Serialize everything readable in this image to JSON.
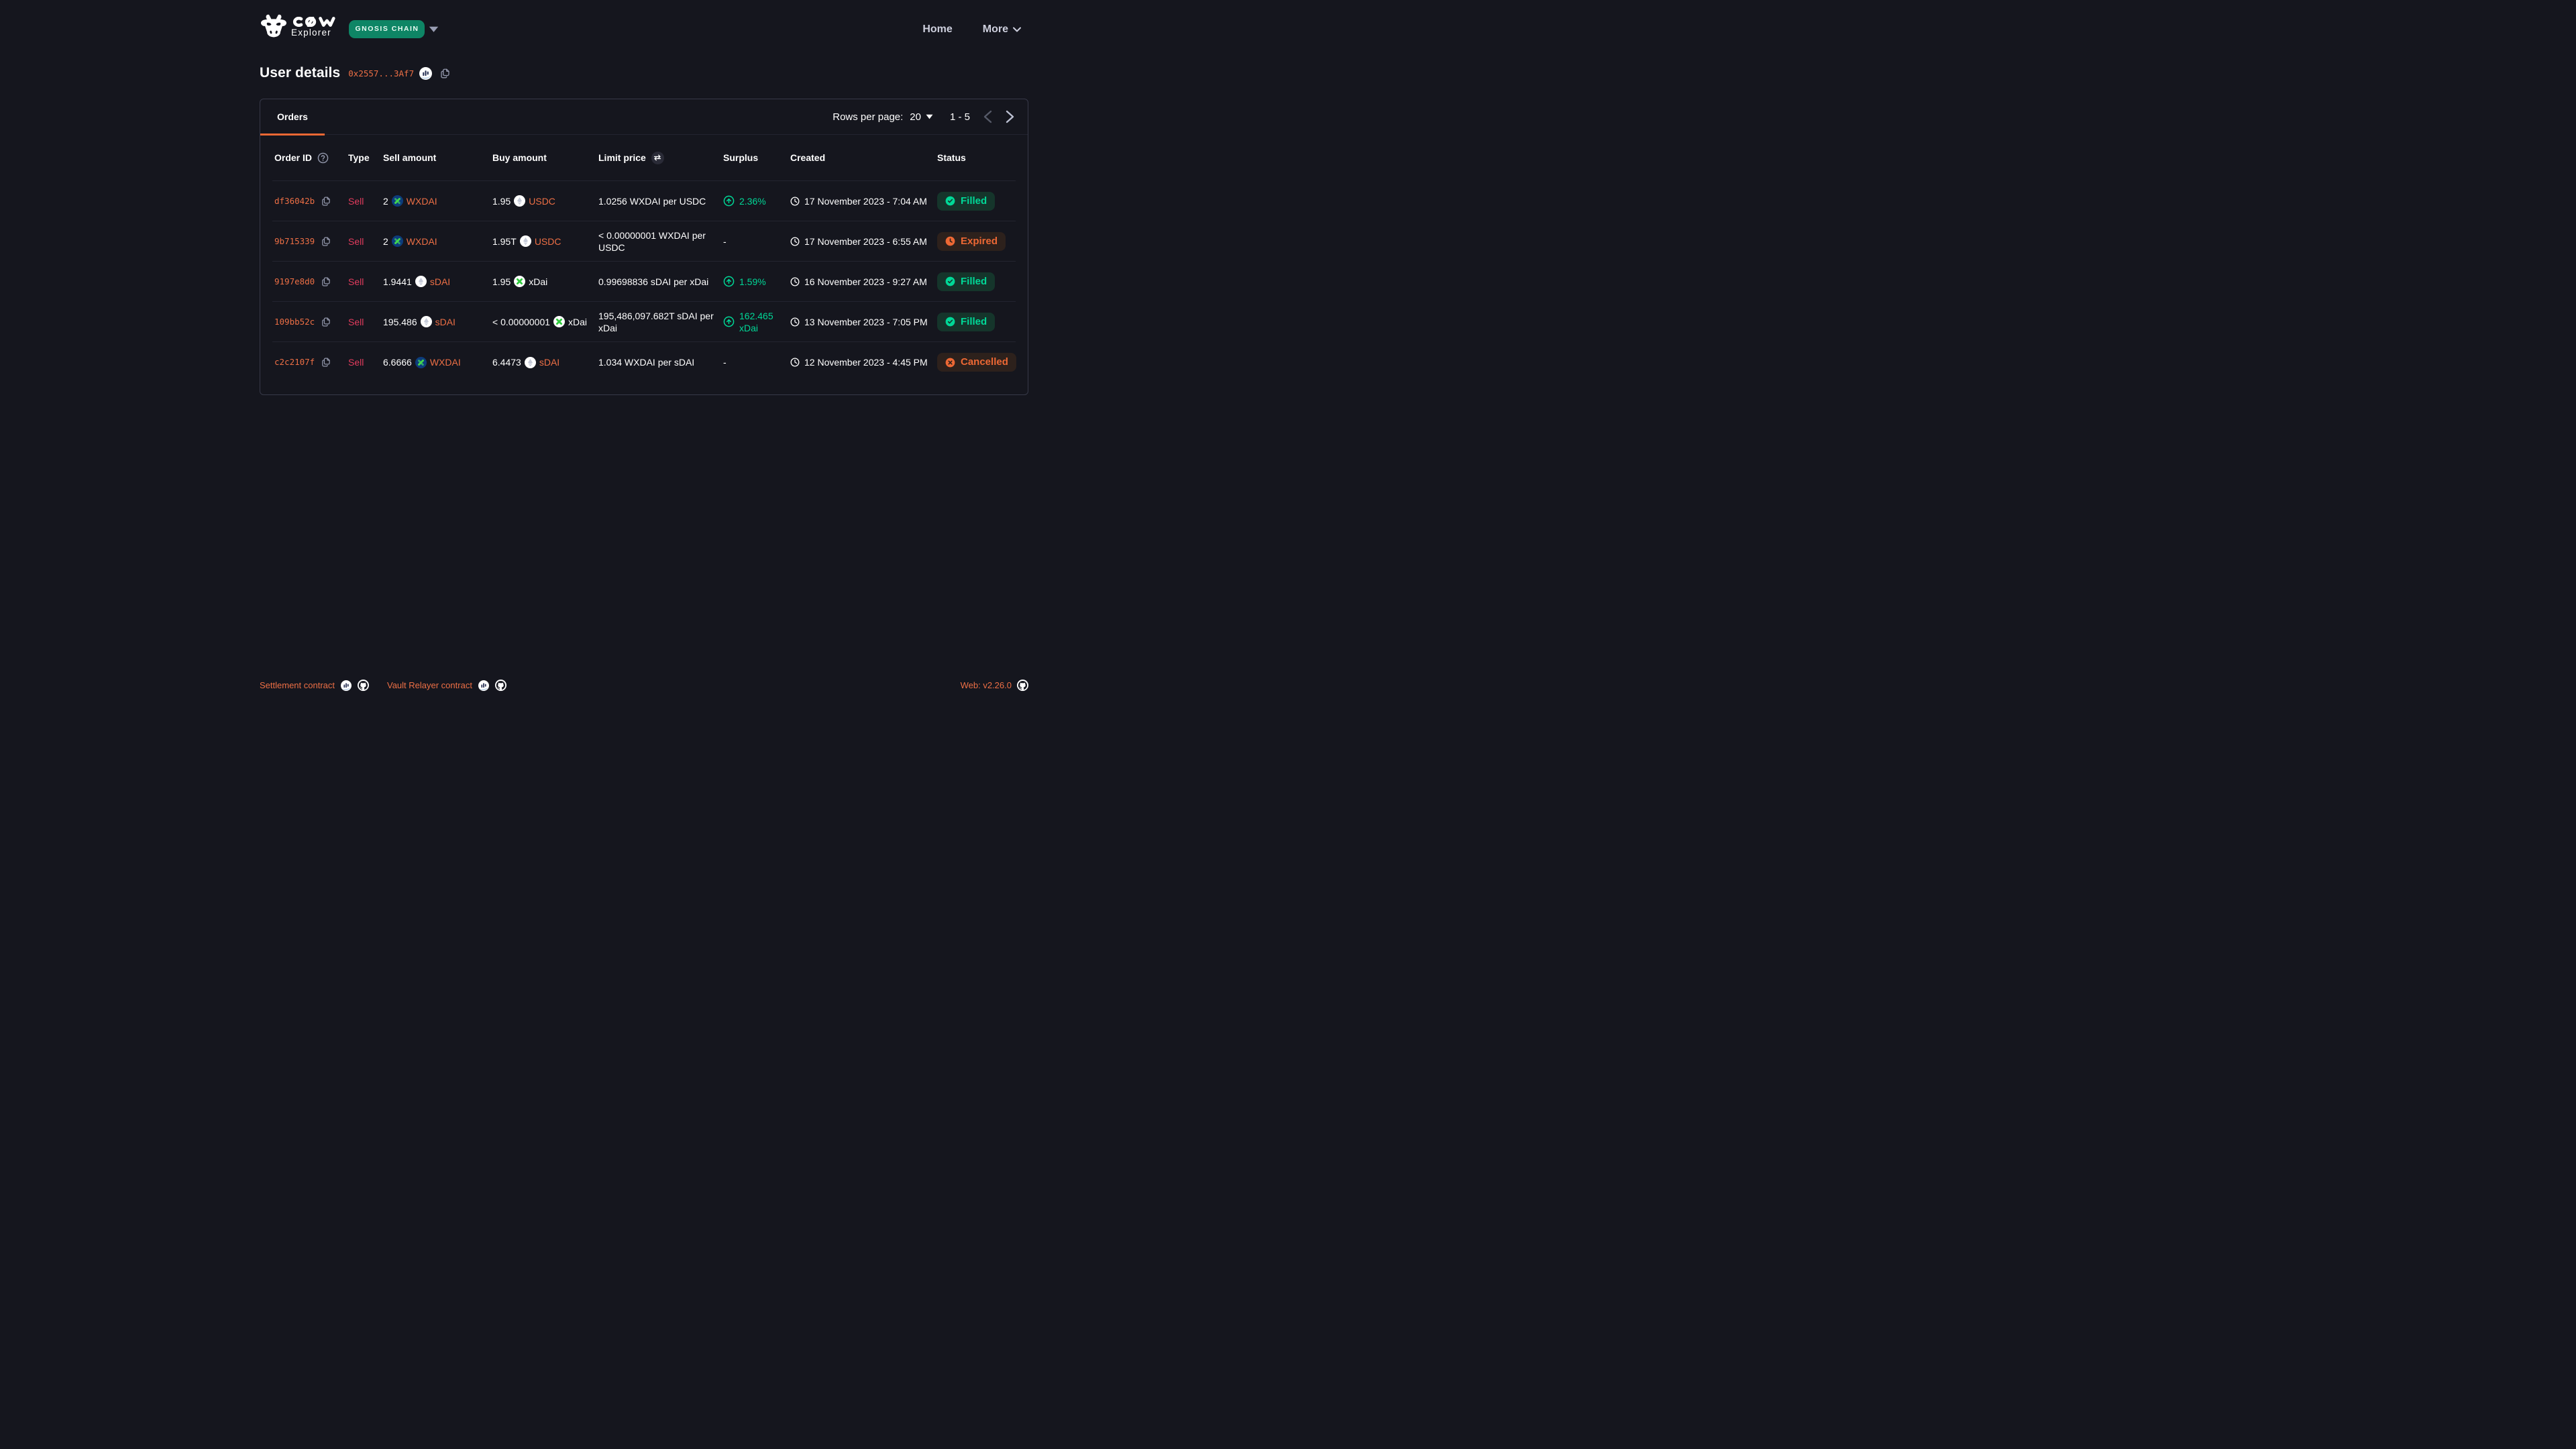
{
  "theme": {
    "background": "#15161E",
    "accent_orange": "#ED6834",
    "link_orange": "#ED6F45",
    "sell_red": "#E23B5D",
    "success_mint": "#00D897",
    "success_bg": "#15352B",
    "warning_orange": "#ED6834",
    "warning_bg": "#2D211C",
    "network_badge_green": "#0E8062"
  },
  "header": {
    "brand": {
      "line1": "COW",
      "line2": "Explorer"
    },
    "network_badge": "GNOSIS CHAIN",
    "nav": [
      {
        "label": "Home",
        "dropdown": false
      },
      {
        "label": "More",
        "dropdown": true
      }
    ]
  },
  "page": {
    "title": "User details",
    "address_short": "0x2557...3Af7"
  },
  "orders_panel": {
    "tab_label": "Orders",
    "rows_per_page_label": "Rows per page:",
    "rows_per_page_value": "20",
    "page_range": "1 - 5",
    "columns": [
      "Order ID",
      "Type",
      "Sell amount",
      "Buy amount",
      "Limit price",
      "Surplus",
      "Created",
      "Status"
    ],
    "rows": [
      {
        "id": "df36042b",
        "type": "Sell",
        "sell": {
          "amount": "2",
          "token": "WXDAI",
          "icon": "wxdai",
          "link": true
        },
        "buy": {
          "amount": "1.95",
          "token": "USDC",
          "icon": "eth",
          "link": true
        },
        "limit_price": "1.0256 WXDAI per USDC",
        "surplus": "2.36%",
        "created": "17 November 2023 - 7:04 AM",
        "status": {
          "label": "Filled",
          "kind": "filled"
        }
      },
      {
        "id": "9b715339",
        "type": "Sell",
        "sell": {
          "amount": "2",
          "token": "WXDAI",
          "icon": "wxdai",
          "link": true
        },
        "buy": {
          "amount": "1.95T",
          "token": "USDC",
          "icon": "eth",
          "link": true
        },
        "limit_price": "< 0.00000001 WXDAI per USDC",
        "surplus": "",
        "created": "17 November 2023 - 6:55 AM",
        "status": {
          "label": "Expired",
          "kind": "expired"
        }
      },
      {
        "id": "9197e8d0",
        "type": "Sell",
        "sell": {
          "amount": "1.9441",
          "token": "sDAI",
          "icon": "eth",
          "link": true
        },
        "buy": {
          "amount": "1.95",
          "token": "xDai",
          "icon": "xdai",
          "link": false
        },
        "limit_price": "0.99698836 sDAI per xDai",
        "surplus": "1.59%",
        "created": "16 November 2023 - 9:27 AM",
        "status": {
          "label": "Filled",
          "kind": "filled"
        }
      },
      {
        "id": "109bb52c",
        "type": "Sell",
        "sell": {
          "amount": "195.486",
          "token": "sDAI",
          "icon": "eth",
          "link": true
        },
        "buy": {
          "amount": "< 0.00000001",
          "token": "xDai",
          "icon": "xdai",
          "link": false
        },
        "limit_price": "195,486,097.682T sDAI per xDai",
        "surplus": "162.465 xDai",
        "created": "13 November 2023 - 7:05 PM",
        "status": {
          "label": "Filled",
          "kind": "filled"
        }
      },
      {
        "id": "c2c2107f",
        "type": "Sell",
        "sell": {
          "amount": "6.6666",
          "token": "WXDAI",
          "icon": "wxdai",
          "link": true
        },
        "buy": {
          "amount": "6.4473",
          "token": "sDAI",
          "icon": "eth",
          "link": true
        },
        "limit_price": "1.034 WXDAI per sDAI",
        "surplus": "",
        "created": "12 November 2023 - 4:45 PM",
        "status": {
          "label": "Cancelled",
          "kind": "cancelled"
        }
      }
    ]
  },
  "footer": {
    "links": [
      {
        "label": "Settlement contract"
      },
      {
        "label": "Vault Relayer contract"
      }
    ],
    "version": "Web: v2.26.0"
  }
}
